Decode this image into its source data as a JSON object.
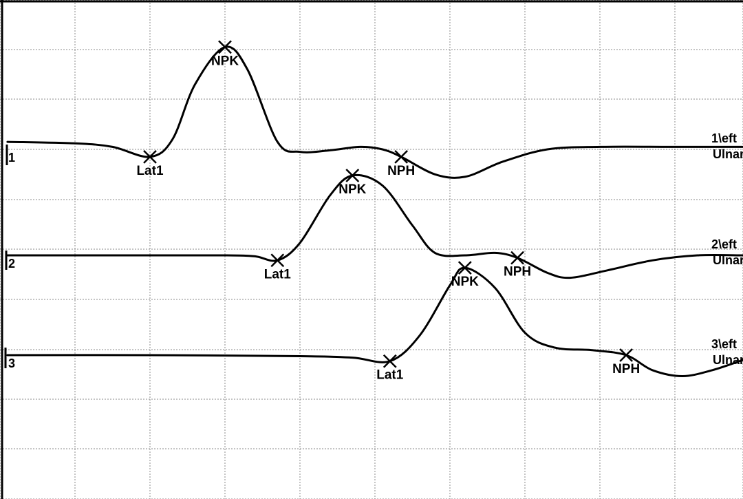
{
  "chart_data": {
    "type": "line",
    "title": "",
    "xlabel": "",
    "ylabel": "",
    "grid": true,
    "traces": [
      {
        "number": "1",
        "side_label_1": "1\\eft",
        "side_label_2": "Ulnar",
        "markers": {
          "lat": {
            "label": "Lat1",
            "x": 2.0
          },
          "npk": {
            "label": "NPK",
            "x": 3.0
          },
          "nph": {
            "label": "NPH",
            "x": 5.35
          }
        },
        "points": [
          [
            0.1,
            0.15
          ],
          [
            1.0,
            0.12
          ],
          [
            1.5,
            0.05
          ],
          [
            2.0,
            -0.15
          ],
          [
            2.3,
            0.2
          ],
          [
            2.6,
            1.3
          ],
          [
            3.0,
            2.05
          ],
          [
            3.3,
            1.6
          ],
          [
            3.7,
            0.15
          ],
          [
            4.0,
            -0.05
          ],
          [
            4.4,
            -0.02
          ],
          [
            4.8,
            0.05
          ],
          [
            5.1,
            0.0
          ],
          [
            5.35,
            -0.15
          ],
          [
            5.8,
            -0.5
          ],
          [
            6.2,
            -0.55
          ],
          [
            6.7,
            -0.25
          ],
          [
            7.3,
            0.0
          ],
          [
            8.0,
            0.05
          ],
          [
            9.0,
            0.05
          ],
          [
            9.9,
            0.05
          ]
        ]
      },
      {
        "number": "2",
        "side_label_1": "2\\eft",
        "side_label_2": "Ulnar",
        "markers": {
          "lat": {
            "label": "Lat1",
            "x": 3.7
          },
          "npk": {
            "label": "NPK",
            "x": 4.7
          },
          "nph": {
            "label": "NPH",
            "x": 6.9
          }
        },
        "points": [
          [
            0.1,
            0.0
          ],
          [
            2.0,
            0.0
          ],
          [
            3.0,
            0.0
          ],
          [
            3.4,
            -0.02
          ],
          [
            3.7,
            -0.1
          ],
          [
            4.0,
            0.25
          ],
          [
            4.4,
            1.2
          ],
          [
            4.7,
            1.6
          ],
          [
            5.1,
            1.4
          ],
          [
            5.5,
            0.6
          ],
          [
            5.8,
            0.05
          ],
          [
            6.2,
            0.0
          ],
          [
            6.6,
            0.05
          ],
          [
            6.9,
            -0.05
          ],
          [
            7.3,
            -0.35
          ],
          [
            7.6,
            -0.45
          ],
          [
            8.1,
            -0.3
          ],
          [
            8.7,
            -0.1
          ],
          [
            9.3,
            0.0
          ],
          [
            9.9,
            0.0
          ]
        ]
      },
      {
        "number": "3",
        "side_label_1": "3\\eft",
        "side_label_2": "Ulnar",
        "markers": {
          "lat": {
            "label": "Lat1",
            "x": 5.2
          },
          "npk": {
            "label": "NPK",
            "x": 6.2
          },
          "nph": {
            "label": "NPH",
            "x": 8.35
          }
        },
        "points": [
          [
            0.1,
            0.0
          ],
          [
            2.0,
            0.0
          ],
          [
            4.0,
            -0.02
          ],
          [
            4.7,
            -0.05
          ],
          [
            5.2,
            -0.12
          ],
          [
            5.6,
            0.4
          ],
          [
            6.0,
            1.4
          ],
          [
            6.2,
            1.75
          ],
          [
            6.6,
            1.35
          ],
          [
            7.0,
            0.45
          ],
          [
            7.4,
            0.15
          ],
          [
            7.9,
            0.1
          ],
          [
            8.35,
            0.0
          ],
          [
            8.7,
            -0.3
          ],
          [
            9.1,
            -0.42
          ],
          [
            9.5,
            -0.3
          ],
          [
            9.9,
            -0.1
          ]
        ]
      }
    ]
  }
}
